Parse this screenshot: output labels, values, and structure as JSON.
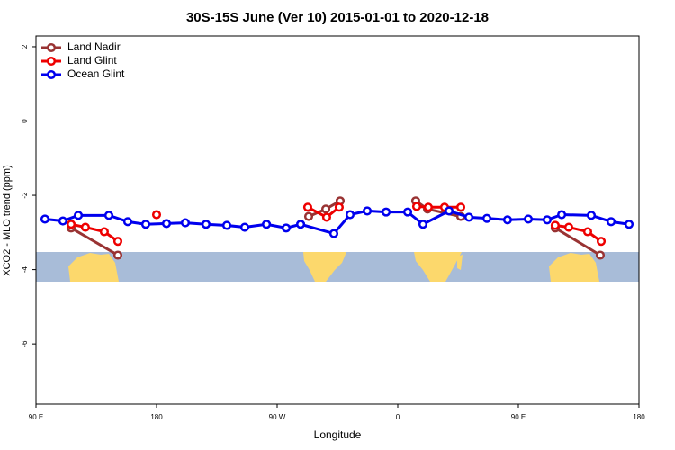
{
  "chart_data": {
    "type": "line",
    "title": "30S-15S June (Ver 10)   2015-01-01 to 2020-12-18",
    "x_label": "Longitude",
    "y_label": "XCO2 - MLO trend (ppm)",
    "xlim": [
      90,
      540
    ],
    "ylim": [
      -7.62,
      2.29
    ],
    "xticks": [
      {
        "value": 90,
        "label": "90 E"
      },
      {
        "value": 180,
        "label": "180"
      },
      {
        "value": 270,
        "label": "90 W"
      },
      {
        "value": 360,
        "label": "0"
      },
      {
        "value": 450,
        "label": "90 E"
      },
      {
        "value": 540,
        "label": "180"
      }
    ],
    "yticks": [
      2,
      0,
      -2,
      -4,
      -6
    ],
    "legend": "top-left",
    "series": [
      {
        "name": "Land Nadir",
        "color": "#993333",
        "x": [
          116.2,
          151.1,
          null,
          293.5,
          306.3,
          317,
          null,
          373.4,
          382.2,
          407,
          null,
          477.5,
          511.1
        ],
        "values": [
          -2.88,
          -3.61,
          null,
          -2.57,
          -2.37,
          -2.15,
          null,
          -2.15,
          -2.37,
          -2.57,
          null,
          -2.88,
          -3.61
        ]
      },
      {
        "name": "Land Glint",
        "color": "#ee0000",
        "x": [
          116.2,
          126.9,
          141,
          151.1,
          null,
          180,
          null,
          292.8,
          306.9,
          316.3,
          null,
          374.1,
          382.8,
          394.9,
          407,
          null,
          477.5,
          487.6,
          501.7,
          511.8
        ],
        "values": [
          -2.78,
          -2.86,
          -2.98,
          -3.24,
          null,
          -2.52,
          null,
          -2.32,
          -2.59,
          -2.32,
          null,
          -2.3,
          -2.32,
          -2.32,
          -2.32,
          null,
          -2.81,
          -2.86,
          -2.98,
          -3.24
        ]
      },
      {
        "name": "Ocean Glint",
        "color": "#0000ee",
        "x": [
          96.7,
          110.1,
          121.6,
          144.4,
          158.5,
          171.9,
          187.4,
          201.5,
          216.9,
          232.4,
          245.8,
          262,
          276.7,
          287.5,
          312.3,
          324.4,
          337.2,
          351.3,
          367.4,
          378.8,
          398.3,
          413.1,
          426.5,
          441.9,
          457.4,
          471.5,
          482.3,
          504.4,
          519.2,
          532.6
        ],
        "values": [
          -2.64,
          -2.69,
          -2.54,
          -2.54,
          -2.71,
          -2.78,
          -2.76,
          -2.74,
          -2.78,
          -2.81,
          -2.86,
          -2.78,
          -2.88,
          -2.78,
          -3.03,
          -2.52,
          -2.42,
          -2.45,
          -2.45,
          -2.78,
          -2.42,
          -2.59,
          -2.62,
          -2.66,
          -2.64,
          -2.66,
          -2.52,
          -2.54,
          -2.71,
          -2.78
        ]
      }
    ]
  }
}
